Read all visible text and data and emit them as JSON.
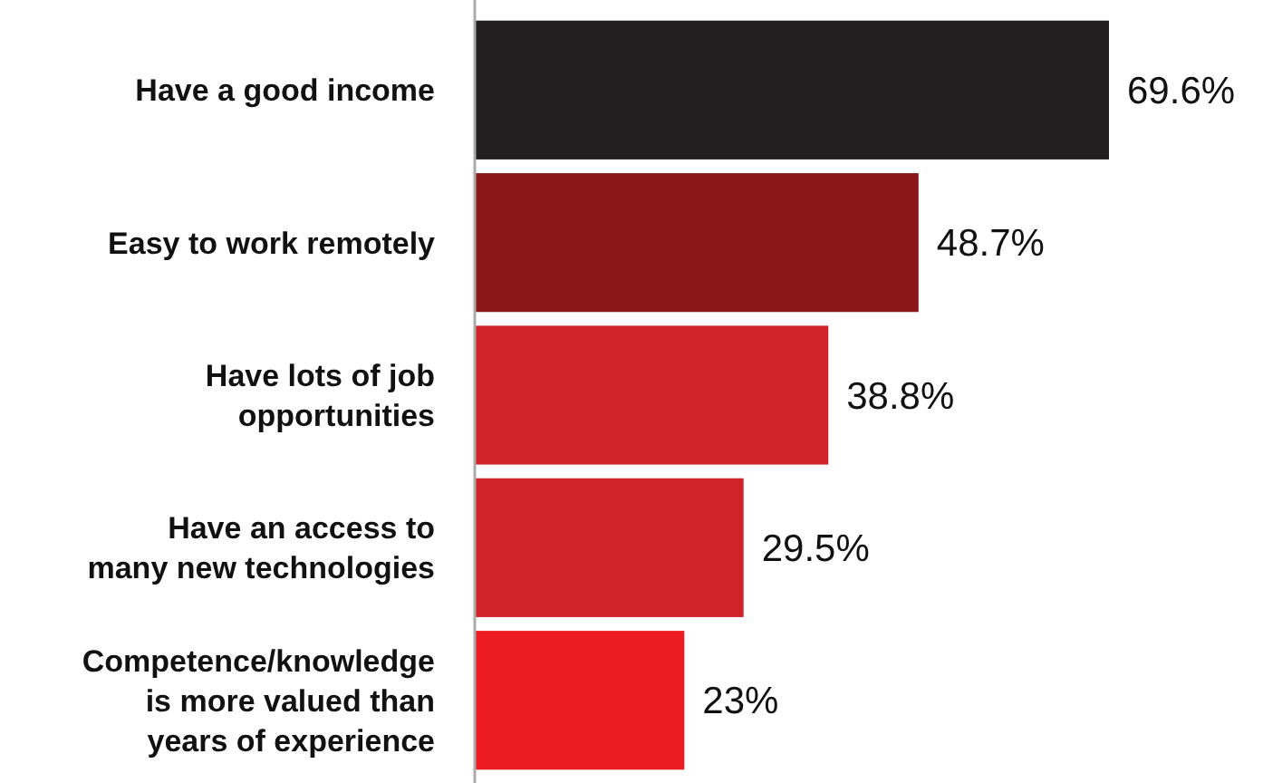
{
  "chart_data": {
    "type": "bar",
    "orientation": "horizontal",
    "categories": [
      "Have a good income",
      "Easy to work remotely",
      "Have lots of job\nopportunities",
      "Have an access to\nmany new technologies",
      "Competence/knowledge\nis more valued than\nyears of experience"
    ],
    "values": [
      69.6,
      48.7,
      38.8,
      29.5,
      23
    ],
    "colors": [
      "#231f20",
      "#8b171a",
      "#d2232a",
      "#d2232a",
      "#ed1c24"
    ],
    "value_labels": [
      "69.6%",
      "48.7%",
      "38.8%",
      "29.5%",
      "23%"
    ]
  }
}
